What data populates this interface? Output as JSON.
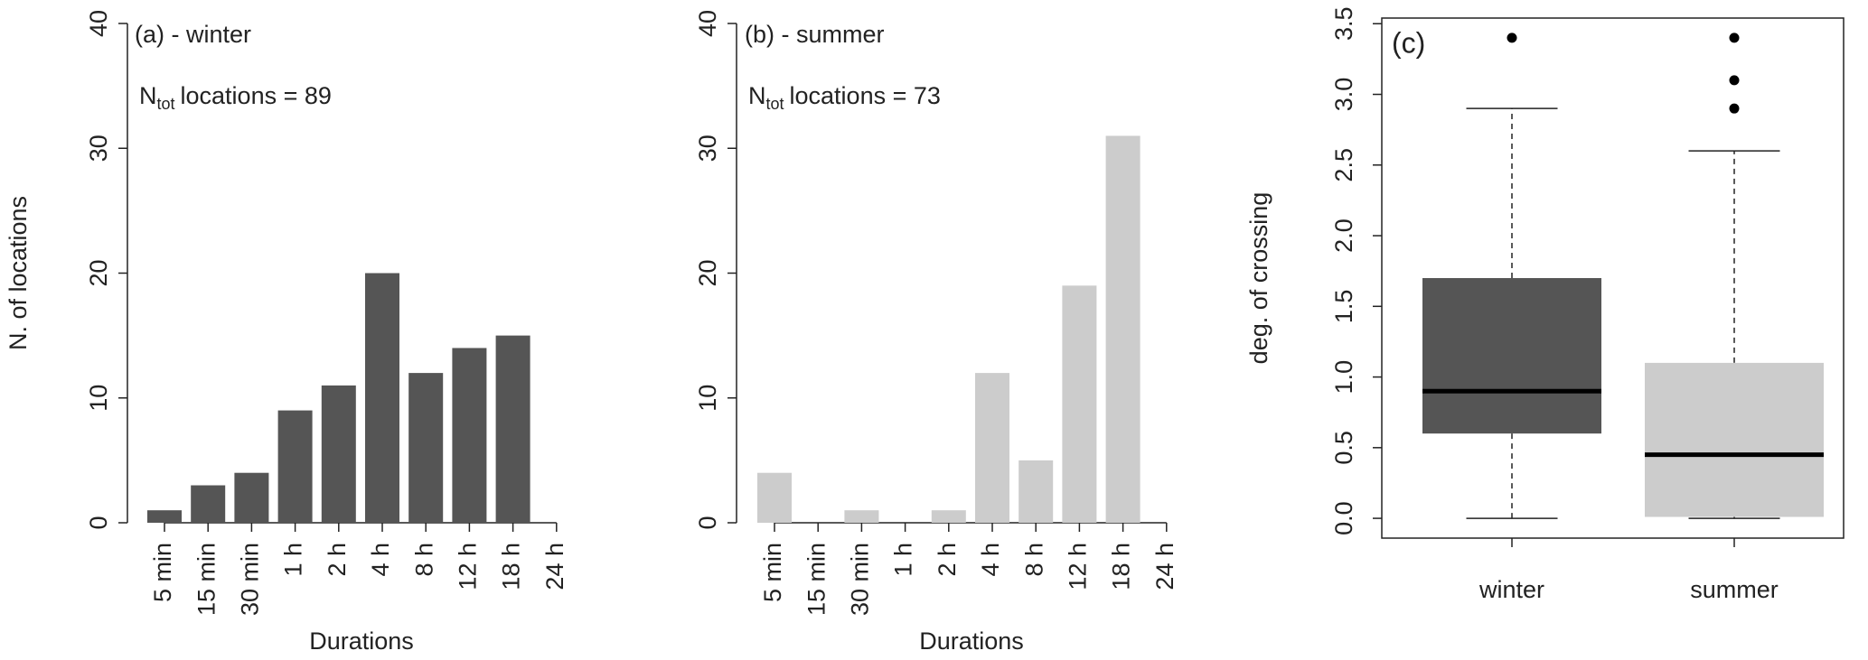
{
  "chart_data": [
    {
      "type": "bar",
      "annotation": "(a) - winter",
      "count_label": {
        "base": "N",
        "subscript": "tot",
        "text": "locations = 89"
      },
      "y_label": "N. of locations",
      "x_label": "Durations",
      "categories": [
        "5 min",
        "15 min",
        "30 min",
        "1 h",
        "2 h",
        "4 h",
        "8 h",
        "12 h",
        "18 h",
        "24 h"
      ],
      "values": [
        1,
        3,
        4,
        9,
        11,
        20,
        12,
        14,
        15,
        null
      ],
      "color": "#555555",
      "ylim": [
        0,
        40
      ],
      "yticks": [
        0,
        10,
        20,
        30,
        40
      ]
    },
    {
      "type": "bar",
      "annotation": "(b) - summer",
      "count_label": {
        "base": "N",
        "subscript": "tot",
        "text": "locations = 73"
      },
      "x_label": "Durations",
      "categories": [
        "5 min",
        "15 min",
        "30 min",
        "1 h",
        "2 h",
        "4 h",
        "8 h",
        "12 h",
        "18 h",
        "24 h"
      ],
      "values": [
        4,
        0,
        1,
        0,
        1,
        12,
        5,
        19,
        31,
        null
      ],
      "color": "#cccccc",
      "ylim": [
        0,
        40
      ],
      "yticks": [
        0,
        10,
        20,
        30,
        40
      ]
    },
    {
      "type": "box",
      "annotation": "(c)",
      "y_label": "deg. of crossing",
      "categories": [
        "winter",
        "summer"
      ],
      "boxes": [
        {
          "min": 0,
          "q1": 0.6,
          "median": 0.9,
          "q3": 1.7,
          "max": 2.9,
          "outliers": [
            3.4
          ],
          "color": "#555555"
        },
        {
          "min": 0,
          "q1": 0.01,
          "median": 0.45,
          "q3": 1.1,
          "max": 2.6,
          "outliers": [
            2.9,
            3.1,
            3.4
          ],
          "color": "#cccccc"
        }
      ],
      "ylim": [
        -0.14,
        3.54
      ],
      "yticks": [
        {
          "value": 0,
          "label": "0.0"
        },
        0.5,
        {
          "value": 1,
          "label": "1.0"
        },
        1.5,
        {
          "value": 2,
          "label": "2.0"
        },
        2.5,
        {
          "value": 3,
          "label": "3.0"
        },
        3.5
      ]
    }
  ]
}
